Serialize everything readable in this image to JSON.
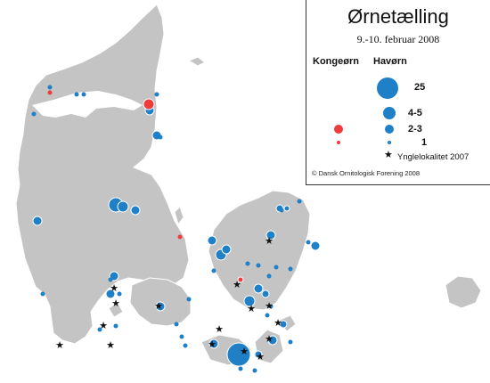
{
  "legend": {
    "title": "Ørnetælling",
    "subtitle": "9.-10. februar 2008",
    "col_kongeorn": "Kongeørn",
    "col_havorn": "Havørn",
    "sizes": [
      "25",
      "4-5",
      "2-3",
      "1"
    ],
    "nest_label": "Yngle­lokalitet 2007",
    "credit": "© Dansk Ornitologisk Forening 2008"
  },
  "colors": {
    "land": "#c4c4c4",
    "havorn": "#1f7fc7",
    "kongeorn": "#ee3b3b",
    "nest": "#111111"
  },
  "icons": {
    "nest": "star-icon"
  }
}
